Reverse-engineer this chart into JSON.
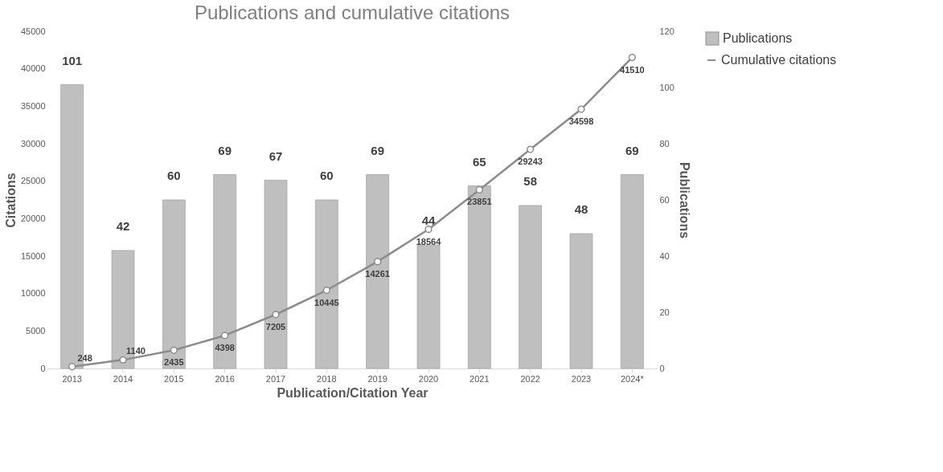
{
  "chart_data": {
    "type": "bar",
    "title": "Publications and cumulative citations",
    "xlabel": "Publication/Citation Year",
    "ylabel": "Citations",
    "y2label": "Publications",
    "categories": [
      "2013",
      "2014",
      "2015",
      "2016",
      "2017",
      "2018",
      "2019",
      "2020",
      "2021",
      "2022",
      "2023",
      "2024*"
    ],
    "series": [
      {
        "name": "Publications",
        "axis": "y2",
        "color": "#bfbfbf",
        "values": [
          101,
          42,
          60,
          69,
          67,
          60,
          69,
          44,
          65,
          58,
          48,
          69
        ]
      },
      {
        "name": "Cumulative citations",
        "type": "line",
        "color": "#8c8c8c",
        "marker": "circle",
        "values": [
          248,
          1140,
          2435,
          4398,
          7205,
          10445,
          14261,
          18564,
          23851,
          29243,
          34598,
          41510
        ]
      }
    ],
    "ylim": [
      0,
      45000
    ],
    "yticks": [
      0,
      5000,
      10000,
      15000,
      20000,
      25000,
      30000,
      35000,
      40000,
      45000
    ],
    "y2lim": [
      0,
      120
    ],
    "y2ticks": [
      0,
      20,
      40,
      60,
      80,
      100,
      120
    ],
    "data_labels": true,
    "legend": "right",
    "grid": false
  }
}
